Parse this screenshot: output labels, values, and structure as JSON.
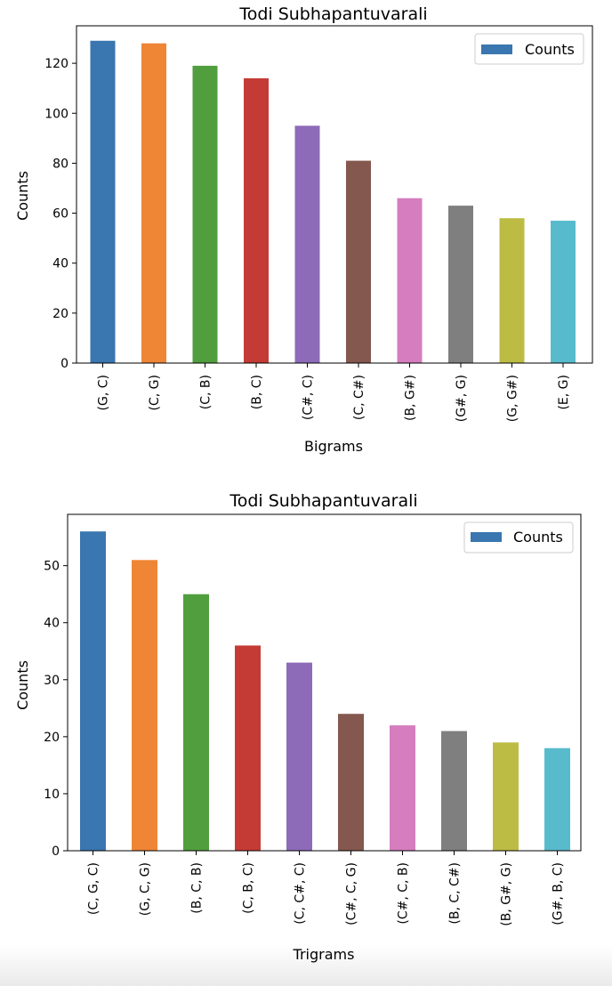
{
  "chart_data": [
    {
      "type": "bar",
      "title": "Todi Subhapantuvarali",
      "xlabel": "Bigrams",
      "ylabel": "Counts",
      "categories": [
        "(G, C)",
        "(C, G)",
        "(C, B)",
        "(B, C)",
        "(C#, C)",
        "(C, C#)",
        "(B, G#)",
        "(G#, G)",
        "(G, G#)",
        "(E, G)"
      ],
      "series": [
        {
          "name": "Counts",
          "values": [
            129,
            128,
            119,
            114,
            95,
            81,
            66,
            63,
            58,
            57
          ]
        }
      ],
      "ylim": [
        0,
        135
      ],
      "yticks": [
        0,
        20,
        40,
        60,
        80,
        100,
        120
      ],
      "legend": "top-right",
      "grid": false,
      "bar_colors": [
        "#3a76af",
        "#ef8636",
        "#519e3e",
        "#c43b35",
        "#8d6bb8",
        "#84584e",
        "#d57dbe",
        "#7f7f7f",
        "#bcbc45",
        "#58bbcc"
      ]
    },
    {
      "type": "bar",
      "title": "Todi Subhapantuvarali",
      "xlabel": "Trigrams",
      "ylabel": "Counts",
      "categories": [
        "(C, G, C)",
        "(G, C, G)",
        "(B, C, B)",
        "(C, B, C)",
        "(C, C#, C)",
        "(C#, C, G)",
        "(C#, C, B)",
        "(B, C, C#)",
        "(B, G#, G)",
        "(G#, B, C)"
      ],
      "series": [
        {
          "name": "Counts",
          "values": [
            56,
            51,
            45,
            36,
            33,
            24,
            22,
            21,
            19,
            18
          ]
        }
      ],
      "ylim": [
        0,
        59
      ],
      "yticks": [
        0,
        10,
        20,
        30,
        40,
        50
      ],
      "legend": "top-right",
      "grid": false,
      "bar_colors": [
        "#3a76af",
        "#ef8636",
        "#519e3e",
        "#c43b35",
        "#8d6bb8",
        "#84584e",
        "#d57dbe",
        "#7f7f7f",
        "#bcbc45",
        "#58bbcc"
      ]
    }
  ]
}
